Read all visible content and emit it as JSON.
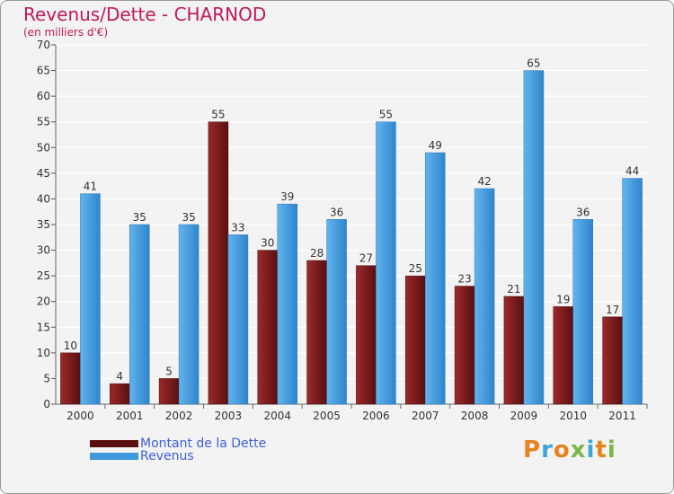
{
  "chart_data": {
    "type": "bar",
    "title": "Revenus/Dette - CHARNOD",
    "subtitle": "(en milliers d'€)",
    "categories": [
      "2000",
      "2001",
      "2002",
      "2003",
      "2004",
      "2005",
      "2006",
      "2007",
      "2008",
      "2009",
      "2010",
      "2011"
    ],
    "series": [
      {
        "name": "Montant de la Dette",
        "values": [
          10,
          4,
          5,
          55,
          30,
          28,
          27,
          25,
          23,
          21,
          19,
          17
        ],
        "color": "#7a1416"
      },
      {
        "name": "Revenus",
        "values": [
          41,
          35,
          35,
          33,
          39,
          36,
          55,
          49,
          42,
          65,
          36,
          44
        ],
        "color": "#3f97dc"
      }
    ],
    "ylim": [
      0,
      70
    ],
    "ytick_step": 5,
    "grid": true,
    "legend": "bottom-left"
  },
  "logo": {
    "text": "Proxiti",
    "colors": [
      "#e8821e",
      "#3aa6d8",
      "#e8821e",
      "#7ab648",
      "#3aa6d8",
      "#e8821e",
      "#7ab648"
    ]
  }
}
